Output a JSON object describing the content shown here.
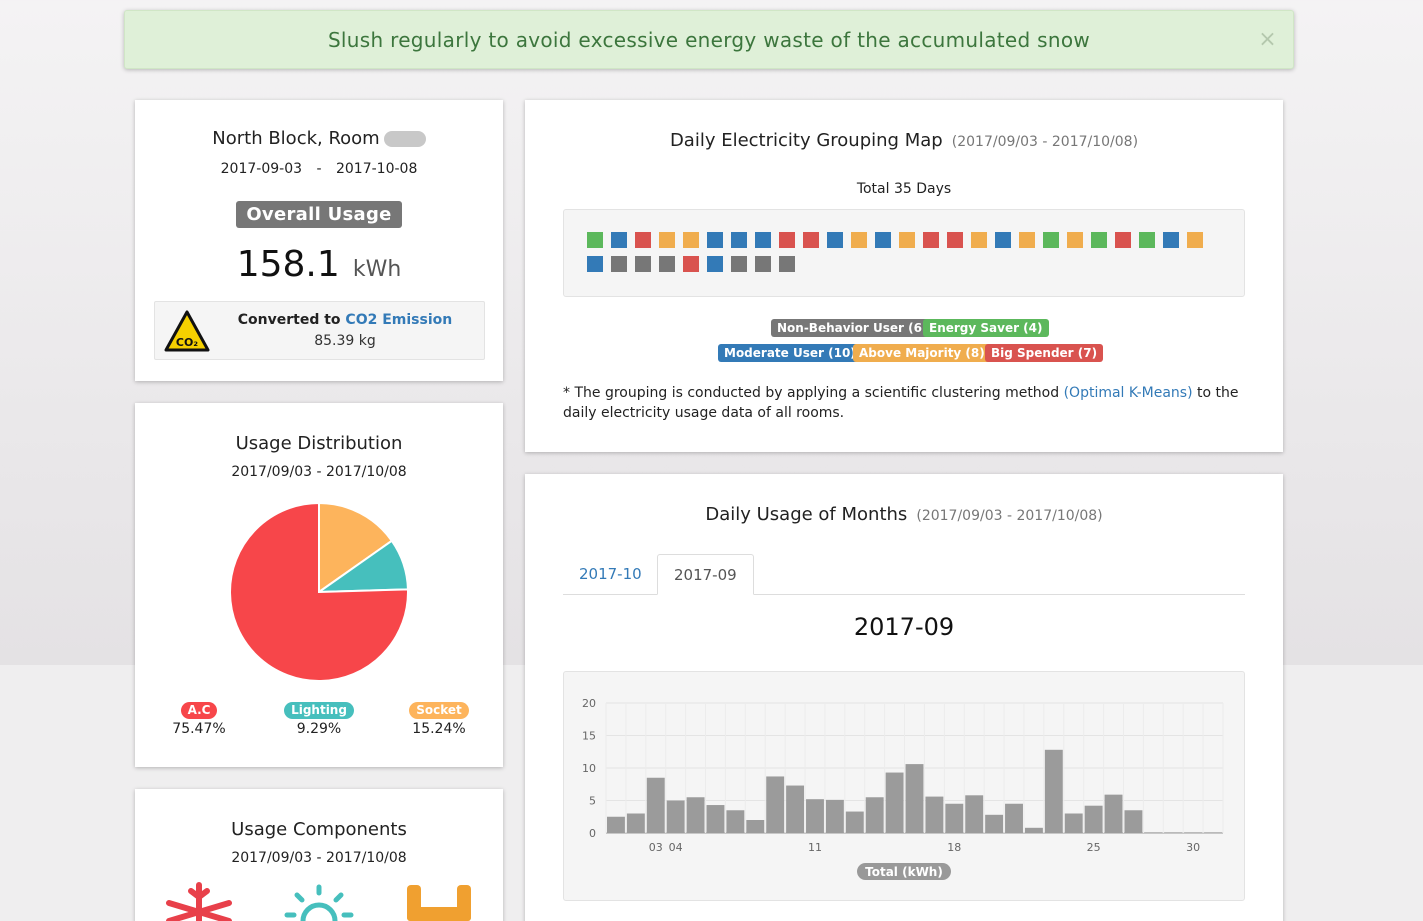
{
  "colors": {
    "non_behavior": "#777777",
    "saver": "#5cb85c",
    "moderate": "#337ab7",
    "above": "#f0ad4e",
    "big": "#d9534f",
    "ac": "#f7464a",
    "lighting": "#46bfbd",
    "socket": "#fdb45c",
    "bar": "#9b9b9b"
  },
  "alert": {
    "message": "Slush regularly to avoid excessive energy waste of the accumulated snow",
    "close_symbol": "×"
  },
  "room": {
    "title": "North Block, Room",
    "date_from": "2017-09-03",
    "date_sep": "-",
    "date_to": "2017-10-08",
    "usage_label": "Overall Usage",
    "usage_value": "158.1",
    "usage_unit": "kWh",
    "co2_icon_text": "CO₂",
    "co2_prefix": "Converted to",
    "co2_link": "CO2 Emission",
    "co2_value": "85.39 kg"
  },
  "distribution": {
    "title": "Usage Distribution",
    "range": "2017/09/03 - 2017/10/08",
    "chart_data": {
      "type": "pie",
      "slices": [
        {
          "label": "A.C",
          "value": 75.47,
          "percent": "75.47%",
          "color": "#f7464a"
        },
        {
          "label": "Lighting",
          "value": 9.29,
          "percent": "9.29%",
          "color": "#46bfbd"
        },
        {
          "label": "Socket",
          "value": 15.24,
          "percent": "15.24%",
          "color": "#fdb45c"
        }
      ]
    }
  },
  "components": {
    "title": "Usage Components",
    "range": "2017/09/03 - 2017/10/08",
    "icons": [
      "snowflake-icon",
      "lightbulb-icon",
      "plug-icon"
    ]
  },
  "grouping": {
    "title": "Daily Electricity Grouping Map",
    "range": "(2017/09/03 - 2017/10/08)",
    "total": "Total 35 Days",
    "days": [
      "saver",
      "moderate",
      "big",
      "above",
      "above",
      "moderate",
      "moderate",
      "moderate",
      "big",
      "big",
      "moderate",
      "above",
      "moderate",
      "above",
      "big",
      "big",
      "above",
      "moderate",
      "above",
      "saver",
      "above",
      "saver",
      "big",
      "saver",
      "moderate",
      "above",
      "moderate",
      "non_behavior",
      "non_behavior",
      "non_behavior",
      "big",
      "moderate",
      "non_behavior",
      "non_behavior",
      "non_behavior"
    ],
    "legend": [
      {
        "key": "non_behavior",
        "label": "Non-Behavior User (6)"
      },
      {
        "key": "saver",
        "label": "Energy Saver (4)"
      },
      {
        "key": "moderate",
        "label": "Moderate User (10)"
      },
      {
        "key": "above",
        "label": "Above Majority (8)"
      },
      {
        "key": "big",
        "label": "Big Spender (7)"
      }
    ],
    "note_prefix": "* The grouping is conducted by applying a scientific clustering method",
    "note_link": "(Optimal K-Means)",
    "note_suffix": "to the",
    "note_line2": "daily electricity usage data of all rooms."
  },
  "months": {
    "title": "Daily Usage of Months",
    "range": "(2017/09/03 - 2017/10/08)",
    "tabs": [
      {
        "label": "2017-10",
        "active": false
      },
      {
        "label": "2017-09",
        "active": true
      }
    ],
    "heading": "2017-09",
    "chart_data": {
      "type": "bar",
      "x": [
        1,
        2,
        3,
        4,
        5,
        6,
        7,
        8,
        9,
        10,
        11,
        12,
        13,
        14,
        15,
        16,
        17,
        18,
        19,
        20,
        21,
        22,
        23,
        24,
        25,
        26,
        27,
        28,
        29,
        30,
        31
      ],
      "values": [
        2.5,
        3.0,
        8.5,
        5.0,
        5.5,
        4.3,
        3.5,
        2.0,
        8.7,
        7.3,
        5.2,
        5.1,
        3.3,
        5.5,
        9.3,
        10.6,
        5.6,
        4.5,
        5.8,
        2.8,
        4.5,
        0.8,
        12.8,
        3.0,
        4.2,
        5.9,
        3.5,
        0.1,
        0.1,
        0.1,
        0.1
      ],
      "xticks": [
        {
          "x": 3,
          "label": "03"
        },
        {
          "x": 4,
          "label": "04"
        },
        {
          "x": 11,
          "label": "11"
        },
        {
          "x": 18,
          "label": "18"
        },
        {
          "x": 25,
          "label": "25"
        },
        {
          "x": 30,
          "label": "30"
        }
      ],
      "yticks": [
        0,
        5,
        10,
        15,
        20
      ],
      "ylim": [
        0,
        20
      ],
      "xlabel": "Total (kWh)",
      "grid": true
    }
  }
}
